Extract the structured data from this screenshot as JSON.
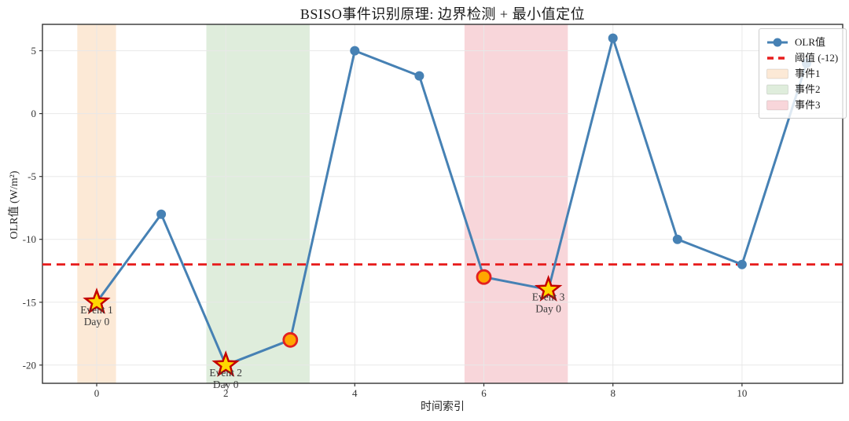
{
  "title": "BSISO事件识别原理: 边界检测 + 最小值定位",
  "chart_data": {
    "type": "line",
    "title": "BSISO事件识别原理: 边界检测 + 最小值定位",
    "xlabel": "时间索引",
    "ylabel": "OLR值 (W/m²)",
    "x": [
      0,
      1,
      2,
      3,
      4,
      5,
      6,
      7,
      8,
      9,
      10,
      11
    ],
    "series": [
      {
        "name": "OLR值",
        "color": "#4681b4",
        "values": [
          -15,
          -8,
          -20,
          -18,
          5,
          3,
          -13,
          -14,
          6,
          -10,
          -12,
          4
        ]
      }
    ],
    "threshold": {
      "label": "阈值 (-12)",
      "value": -12,
      "color": "#e71d1d"
    },
    "events": [
      {
        "name": "事件1",
        "band": [
          -0.3,
          0.3
        ],
        "color": "#fce9d6",
        "min_point": {
          "x": 0,
          "y": -15
        },
        "annotation": [
          "Event 1",
          "Day 0"
        ],
        "boundary_points": []
      },
      {
        "name": "事件2",
        "band": [
          1.7,
          3.3
        ],
        "color": "#dfeddc",
        "min_point": {
          "x": 2,
          "y": -20
        },
        "annotation": [
          "Event 2",
          "Day 0"
        ],
        "boundary_points": [
          {
            "x": 3,
            "y": -18
          }
        ]
      },
      {
        "name": "事件3",
        "band": [
          5.7,
          7.3
        ],
        "color": "#f8d6da",
        "min_point": {
          "x": 7,
          "y": -14
        },
        "annotation": [
          "Event 3",
          "Day 0"
        ],
        "boundary_points": [
          {
            "x": 6,
            "y": -13
          }
        ]
      }
    ],
    "marker_styles": {
      "star": {
        "fill": "#ffd700",
        "edge": "#c40000"
      },
      "boundary_circle": {
        "fill": "#ffa500",
        "edge": "#e32020"
      }
    },
    "xticks": [
      0,
      2,
      4,
      6,
      8,
      10
    ],
    "yticks": [
      5,
      0,
      -5,
      -10,
      -15,
      -20
    ],
    "xlim": [
      -0.84,
      11.56
    ],
    "ylim": [
      -21.45,
      7.1
    ],
    "grid": true,
    "grid_color": "#e8e8e8",
    "spine_color": "#333333",
    "legend": {
      "position": "upper right",
      "entries": [
        {
          "type": "line-marker",
          "label": "OLR值",
          "color": "#4681b4"
        },
        {
          "type": "dashed-line",
          "label": "阈值 (-12)",
          "color": "#e71d1d"
        },
        {
          "type": "patch",
          "label": "事件1",
          "color": "#fce9d6"
        },
        {
          "type": "patch",
          "label": "事件2",
          "color": "#dfeddc"
        },
        {
          "type": "patch",
          "label": "事件3",
          "color": "#f8d6da"
        }
      ]
    }
  }
}
